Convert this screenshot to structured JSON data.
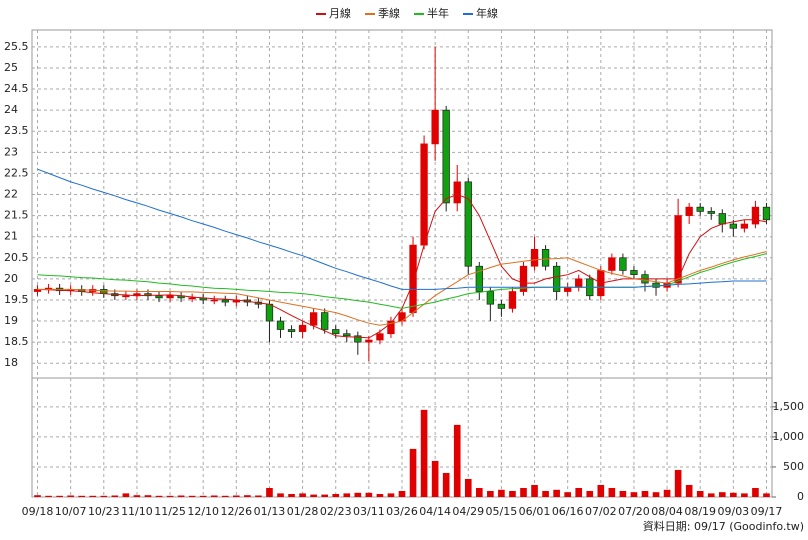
{
  "chart_data": {
    "type": "candlestick",
    "categories": [
      "09/18",
      null,
      null,
      "10/07",
      null,
      null,
      "10/23",
      null,
      null,
      "11/10",
      null,
      null,
      "11/25",
      null,
      null,
      "12/10",
      null,
      null,
      "12/26",
      null,
      null,
      "01/13",
      null,
      null,
      "01/28",
      null,
      null,
      "02/23",
      null,
      null,
      "03/11",
      null,
      null,
      "03/26",
      null,
      null,
      "04/14",
      null,
      null,
      "04/29",
      null,
      null,
      "05/15",
      null,
      null,
      "06/01",
      null,
      null,
      "06/16",
      null,
      null,
      "07/02",
      null,
      null,
      "07/20",
      null,
      null,
      "08/04",
      null,
      null,
      "08/19",
      null,
      null,
      "09/03",
      null,
      null,
      "09/17"
    ],
    "open": [
      19.7,
      19.75,
      19.78,
      19.72,
      19.75,
      19.7,
      19.75,
      19.65,
      19.6,
      19.6,
      19.65,
      19.6,
      19.55,
      19.6,
      19.55,
      19.55,
      19.5,
      19.5,
      19.45,
      19.5,
      19.45,
      19.4,
      19.0,
      18.8,
      18.75,
      18.9,
      19.2,
      18.8,
      18.7,
      18.65,
      18.5,
      18.55,
      18.7,
      19.0,
      19.2,
      20.8,
      23.2,
      24.0,
      21.8,
      22.3,
      20.3,
      19.7,
      19.4,
      19.3,
      19.7,
      20.3,
      20.7,
      20.3,
      19.7,
      19.8,
      20.0,
      19.6,
      20.2,
      20.5,
      20.2,
      20.1,
      19.9,
      19.8,
      19.9,
      21.5,
      21.7,
      21.6,
      21.55,
      21.3,
      21.2,
      21.3,
      21.7
    ],
    "high": [
      19.85,
      19.88,
      19.88,
      19.85,
      19.85,
      19.85,
      19.85,
      19.75,
      19.7,
      19.75,
      19.75,
      19.7,
      19.7,
      19.7,
      19.65,
      19.65,
      19.6,
      19.6,
      19.6,
      19.6,
      19.55,
      19.5,
      19.1,
      18.9,
      19.0,
      19.3,
      19.3,
      18.9,
      18.8,
      18.75,
      18.65,
      18.8,
      19.1,
      19.3,
      21.0,
      23.4,
      25.5,
      24.1,
      22.7,
      22.4,
      20.4,
      19.8,
      19.5,
      19.8,
      20.4,
      21.0,
      20.8,
      20.4,
      19.9,
      20.1,
      20.1,
      20.3,
      20.6,
      20.6,
      20.3,
      20.2,
      20.0,
      20.0,
      21.9,
      21.8,
      21.8,
      21.7,
      21.65,
      21.4,
      21.4,
      21.85,
      21.8
    ],
    "low": [
      19.6,
      19.65,
      19.62,
      19.62,
      19.6,
      19.6,
      19.55,
      19.5,
      19.5,
      19.5,
      19.5,
      19.45,
      19.45,
      19.45,
      19.45,
      19.4,
      19.4,
      19.35,
      19.35,
      19.35,
      19.3,
      18.5,
      18.6,
      18.6,
      18.6,
      18.8,
      18.7,
      18.6,
      18.5,
      18.2,
      18.05,
      18.45,
      18.6,
      18.9,
      19.1,
      20.7,
      22.8,
      21.6,
      21.6,
      20.1,
      19.5,
      19.0,
      19.1,
      19.2,
      19.6,
      20.2,
      20.2,
      19.5,
      19.6,
      19.7,
      19.5,
      19.5,
      20.1,
      20.1,
      20.0,
      19.7,
      19.6,
      19.7,
      19.8,
      21.3,
      21.5,
      21.4,
      21.1,
      21.0,
      21.1,
      21.2,
      21.3
    ],
    "close": [
      19.75,
      19.78,
      19.72,
      19.75,
      19.7,
      19.75,
      19.65,
      19.6,
      19.6,
      19.65,
      19.6,
      19.55,
      19.6,
      19.55,
      19.55,
      19.5,
      19.5,
      19.45,
      19.5,
      19.45,
      19.4,
      19.0,
      18.8,
      18.75,
      18.9,
      19.2,
      18.8,
      18.7,
      18.65,
      18.5,
      18.55,
      18.7,
      19.0,
      19.2,
      20.8,
      23.2,
      24.0,
      21.8,
      22.3,
      20.3,
      19.7,
      19.4,
      19.3,
      19.7,
      20.3,
      20.7,
      20.3,
      19.7,
      19.8,
      20.0,
      19.6,
      20.2,
      20.5,
      20.2,
      20.1,
      19.9,
      19.8,
      19.9,
      21.5,
      21.7,
      21.6,
      21.55,
      21.3,
      21.2,
      21.3,
      21.7,
      21.4
    ],
    "up_color": "#e00000",
    "down_color": "#10a010",
    "series": [
      {
        "name": "月線",
        "color": "#d01010",
        "values": [
          19.75,
          19.74,
          19.73,
          19.72,
          19.7,
          19.67,
          19.65,
          19.63,
          19.62,
          19.6,
          19.61,
          19.61,
          19.62,
          19.6,
          19.57,
          19.55,
          19.53,
          19.52,
          19.5,
          19.47,
          19.43,
          19.4,
          19.27,
          19.13,
          19.0,
          18.88,
          18.77,
          18.65,
          18.63,
          18.62,
          18.6,
          18.75,
          18.95,
          19.3,
          19.9,
          20.8,
          21.6,
          21.9,
          22.0,
          21.9,
          21.5,
          20.9,
          20.3,
          20.0,
          19.9,
          19.9,
          20.0,
          20.05,
          20.1,
          20.2,
          20.05,
          19.9,
          19.95,
          20.0,
          20.0,
          20.0,
          20.0,
          20.0,
          20.0,
          20.6,
          21.0,
          21.2,
          21.3,
          21.35,
          21.4,
          21.4,
          21.35
        ]
      },
      {
        "name": "季線",
        "color": "#e07020",
        "values": [
          19.75,
          19.75,
          19.75,
          19.75,
          19.74,
          19.73,
          19.72,
          19.71,
          19.71,
          19.7,
          19.7,
          19.7,
          19.7,
          19.69,
          19.69,
          19.68,
          19.67,
          19.66,
          19.65,
          19.6,
          19.55,
          19.5,
          19.45,
          19.4,
          19.35,
          19.3,
          19.25,
          19.2,
          19.12,
          19.03,
          18.95,
          18.9,
          18.95,
          19.0,
          19.2,
          19.4,
          19.6,
          19.77,
          19.93,
          20.1,
          20.18,
          20.27,
          20.35,
          20.38,
          20.42,
          20.45,
          20.47,
          20.48,
          20.5,
          20.4,
          20.3,
          20.2,
          20.13,
          20.07,
          20.0,
          19.97,
          19.93,
          19.9,
          20.0,
          20.1,
          20.2,
          20.28,
          20.37,
          20.45,
          20.52,
          20.58,
          20.65
        ]
      },
      {
        "name": "半年",
        "color": "#22bb22",
        "values": [
          20.1,
          20.08,
          20.07,
          20.05,
          20.03,
          20.02,
          20.0,
          19.98,
          19.97,
          19.95,
          19.93,
          19.9,
          19.88,
          19.85,
          19.83,
          19.8,
          19.78,
          19.77,
          19.75,
          19.73,
          19.72,
          19.7,
          19.68,
          19.67,
          19.65,
          19.62,
          19.58,
          19.55,
          19.52,
          19.48,
          19.45,
          19.4,
          19.35,
          19.3,
          19.35,
          19.4,
          19.45,
          19.52,
          19.58,
          19.65,
          19.68,
          19.72,
          19.75,
          19.77,
          19.78,
          19.8,
          19.8,
          19.8,
          19.8,
          19.8,
          19.8,
          19.8,
          19.8,
          19.8,
          19.8,
          19.82,
          19.83,
          19.85,
          19.95,
          20.05,
          20.15,
          20.23,
          20.32,
          20.4,
          20.47,
          20.53,
          20.6
        ]
      },
      {
        "name": "年線",
        "color": "#1f6fd0",
        "values": [
          22.6,
          22.5,
          22.4,
          22.3,
          22.22,
          22.13,
          22.05,
          21.97,
          21.88,
          21.8,
          21.72,
          21.63,
          21.55,
          21.47,
          21.38,
          21.3,
          21.22,
          21.13,
          21.05,
          20.97,
          20.88,
          20.8,
          20.72,
          20.63,
          20.55,
          20.45,
          20.35,
          20.25,
          20.17,
          20.08,
          20.0,
          19.92,
          19.83,
          19.75,
          19.75,
          19.75,
          19.75,
          19.77,
          19.78,
          19.8,
          19.8,
          19.8,
          19.8,
          19.8,
          19.8,
          19.8,
          19.8,
          19.8,
          19.8,
          19.8,
          19.8,
          19.8,
          19.8,
          19.8,
          19.8,
          19.82,
          19.83,
          19.85,
          19.87,
          19.88,
          19.9,
          19.92,
          19.93,
          19.95,
          19.95,
          19.95,
          19.95
        ]
      }
    ],
    "ylim": [
      17.65,
      25.9
    ],
    "yticks": [
      18,
      18.5,
      19,
      19.5,
      20,
      20.5,
      21,
      21.5,
      22,
      22.5,
      23,
      23.5,
      24,
      24.5,
      25,
      25.5
    ],
    "volume": [
      30,
      20,
      20,
      25,
      20,
      20,
      20,
      25,
      60,
      30,
      30,
      20,
      20,
      25,
      20,
      20,
      25,
      20,
      25,
      30,
      25,
      150,
      60,
      50,
      60,
      40,
      40,
      50,
      60,
      70,
      70,
      50,
      60,
      100,
      800,
      1450,
      600,
      400,
      1200,
      300,
      150,
      100,
      120,
      100,
      150,
      200,
      100,
      120,
      80,
      150,
      100,
      200,
      150,
      100,
      80,
      100,
      80,
      120,
      450,
      200,
      100,
      60,
      80,
      70,
      60,
      150,
      60
    ],
    "volume_color": "#e00000",
    "y2lim": [
      0,
      1980
    ],
    "y2ticks": [
      0,
      500,
      {
        "value": 1000,
        "label": "1,000"
      },
      {
        "value": 1500,
        "label": "1,500"
      }
    ],
    "grid": true,
    "footnote": "資料日期: 09/17 (Goodinfo.tw)"
  }
}
